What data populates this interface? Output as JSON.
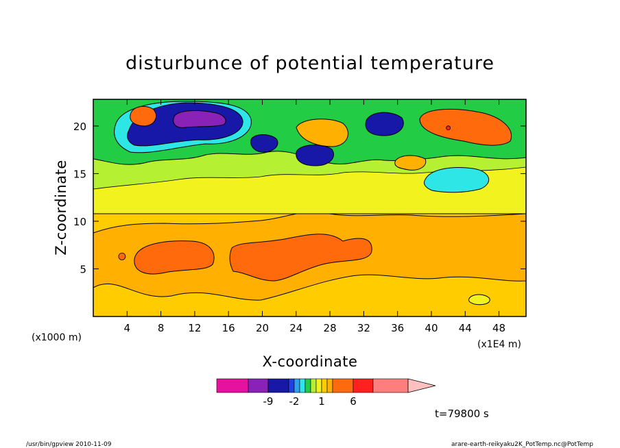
{
  "chart_data": {
    "type": "heatmap",
    "title": "disturbunce of potential temperature",
    "xlabel": "X-coordinate",
    "ylabel": "Z-coordinate",
    "x_unit": "(x1E4 m)",
    "y_unit": "(x1000 m)",
    "xlim": [
      0,
      51.2
    ],
    "ylim": [
      0,
      22.8
    ],
    "x_ticks": [
      "4",
      "8",
      "12",
      "16",
      "20",
      "24",
      "28",
      "32",
      "36",
      "40",
      "44",
      "48"
    ],
    "y_ticks": [
      "5",
      "10",
      "15",
      "20"
    ],
    "x_tick_values": [
      4,
      8,
      12,
      16,
      20,
      24,
      28,
      32,
      36,
      40,
      44,
      48
    ],
    "y_tick_values": [
      5,
      10,
      15,
      20
    ],
    "time_label": "t=79800 s",
    "colorbar": {
      "tick_labels": [
        "-9",
        "-2",
        "1",
        "6"
      ],
      "colors": [
        "#e6119c",
        "#8a22b8",
        "#1717a8",
        "#2040e6",
        "#2aa3ee",
        "#2ee6e6",
        "#22cc44",
        "#b6f033",
        "#f2f21e",
        "#ffcc00",
        "#ffb000",
        "#ff6a0d",
        "#ff2020",
        "#ff7d7d",
        "#ffc0c0"
      ],
      "extend": "max"
    },
    "features": [
      {
        "x": 10,
        "z": 6.2,
        "value": 3.5
      },
      {
        "x": 26,
        "z": 7.2,
        "value": 3.5
      },
      {
        "x": 12,
        "z": 20.6,
        "value": -8
      },
      {
        "x": 11,
        "z": 20.4,
        "value": -4
      },
      {
        "x": 5.5,
        "z": 21.3,
        "value": 5
      },
      {
        "x": 26.5,
        "z": 19.6,
        "value": 4.5
      },
      {
        "x": 42,
        "z": 19.8,
        "value": 4.5
      },
      {
        "x": 25.5,
        "z": 16.6,
        "value": -4
      },
      {
        "x": 19.5,
        "z": 18.2,
        "value": -3.5
      },
      {
        "x": 35,
        "z": 20.4,
        "value": -3.5
      },
      {
        "x": 45,
        "z": 14.8,
        "value": -1.2
      },
      {
        "x": 46,
        "z": 1.8,
        "value": 0.5
      }
    ]
  },
  "footer": {
    "left": "/usr/bin/gpview  2010-11-09",
    "right": "arare-earth-reikyaku2K_PotTemp.nc@PotTemp"
  }
}
